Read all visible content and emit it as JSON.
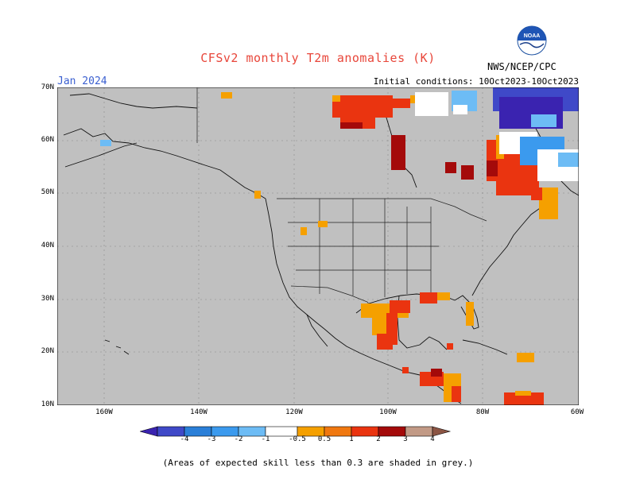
{
  "header": {
    "title": "CFSv2 monthly T2m anomalies (K)",
    "month": "Jan 2024",
    "initial_conditions": "Initial conditions: 10Oct2023-10Oct2023",
    "agency": "NWS/NCEP/CPC",
    "logo_text": "NOAA"
  },
  "axes": {
    "y_ticks": [
      "70N",
      "60N",
      "50N",
      "40N",
      "30N",
      "20N",
      "10N"
    ],
    "x_ticks": [
      "160W",
      "140W",
      "120W",
      "100W",
      "80W",
      "60W"
    ]
  },
  "colorbar": {
    "labels": [
      "-4",
      "-3",
      "-2",
      "-1",
      "-0.5",
      "0.5",
      "1",
      "2",
      "3",
      "4"
    ],
    "colors": [
      "#3a23b0",
      "#3f49c8",
      "#2a7fd8",
      "#3b9aee",
      "#6dbcf5",
      "#ffffff",
      "#f5a000",
      "#f07810",
      "#ea3410",
      "#a40a0a",
      "#c29a86",
      "#8c5544"
    ]
  },
  "colors": {
    "map_background": "#c0c0c0",
    "title": "#e8463a",
    "month": "#3a5fd0"
  },
  "footer": {
    "note": "(Areas of expected skill less than 0.3 are shaded in grey.)"
  }
}
